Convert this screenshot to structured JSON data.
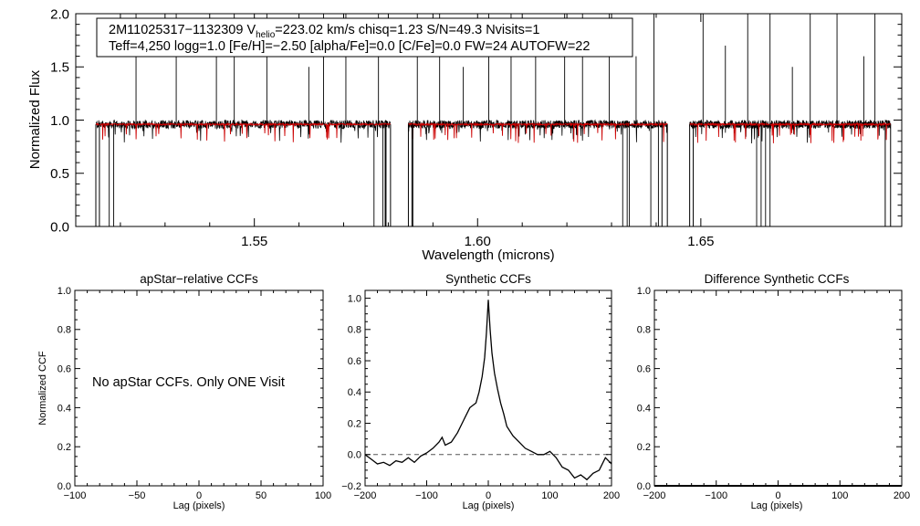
{
  "chart_data": [
    {
      "type": "line",
      "id": "spectrum",
      "title": "",
      "xlabel": "Wavelength (microns)",
      "ylabel": "Normalized Flux",
      "xlim": [
        1.51,
        1.695
      ],
      "ylim": [
        0.0,
        2.0
      ],
      "xticks": [
        1.55,
        1.6,
        1.65
      ],
      "xtick_labels": [
        "1.55",
        "1.60",
        "1.65"
      ],
      "yticks": [
        0.0,
        0.5,
        1.0,
        1.5,
        2.0
      ],
      "ytick_labels": [
        "0.0",
        "0.5",
        "1.0",
        "1.5",
        "2.0"
      ],
      "annotation_line1": "2M11025317−1132309  Vhelio=223.02 km/s  chisq=1.23  S/N=49.3  Nvisits=1",
      "annotation_line2": "Teff=4,250 logg=1.0 [Fe/H]=−2.50 [alpha/Fe]=0.0 [C/Fe]=0.0 FW=24 AUTOFW=22",
      "segments": [
        [
          1.5145,
          1.5805
        ],
        [
          1.5845,
          1.6425
        ],
        [
          1.6475,
          1.6925
        ]
      ],
      "continuum_level": 0.96,
      "series_colors": {
        "observed": "#000000",
        "model": "#cc0000"
      }
    },
    {
      "type": "line",
      "id": "apstar-ccf",
      "title": "apStar−relative CCFs",
      "xlabel": "Lag (pixels)",
      "ylabel": "Normalized CCF",
      "xlim": [
        -100,
        100
      ],
      "ylim": [
        0.0,
        1.0
      ],
      "xticks": [
        -100,
        -50,
        0,
        50,
        100
      ],
      "xtick_labels": [
        "−100",
        "−50",
        "0",
        "50",
        "100"
      ],
      "yticks": [
        0.0,
        0.2,
        0.4,
        0.6,
        0.8,
        1.0
      ],
      "ytick_labels": [
        "0.0",
        "0.2",
        "0.4",
        "0.6",
        "0.8",
        "1.0"
      ],
      "message": "No apStar CCFs.  Only ONE Visit"
    },
    {
      "type": "line",
      "id": "synthetic-ccf",
      "title": "Synthetic CCFs",
      "xlabel": "Lag (pixels)",
      "ylabel": "",
      "xlim": [
        -200,
        200
      ],
      "ylim": [
        -0.2,
        1.05
      ],
      "xticks": [
        -200,
        -100,
        0,
        100,
        200
      ],
      "xtick_labels": [
        "−200",
        "−100",
        "0",
        "100",
        "200"
      ],
      "yticks": [
        -0.2,
        0.0,
        0.2,
        0.4,
        0.6,
        0.8,
        1.0
      ],
      "ytick_labels": [
        "−0.2",
        "0.0",
        "0.2",
        "0.4",
        "0.6",
        "0.8",
        "1.0"
      ],
      "zero_line": 0.0,
      "x": [
        -200,
        -190,
        -180,
        -170,
        -160,
        -150,
        -140,
        -130,
        -120,
        -110,
        -100,
        -90,
        -80,
        -75,
        -70,
        -60,
        -50,
        -40,
        -30,
        -20,
        -15,
        -10,
        -6,
        -3,
        0,
        3,
        6,
        10,
        15,
        20,
        25,
        30,
        40,
        50,
        60,
        70,
        80,
        90,
        100,
        110,
        120,
        130,
        140,
        150,
        160,
        170,
        180,
        190,
        200
      ],
      "values": [
        0.0,
        -0.03,
        -0.06,
        -0.05,
        -0.07,
        -0.04,
        -0.05,
        -0.02,
        -0.05,
        -0.01,
        0.01,
        0.04,
        0.08,
        0.11,
        0.06,
        0.08,
        0.14,
        0.22,
        0.3,
        0.33,
        0.4,
        0.5,
        0.62,
        0.78,
        0.99,
        0.8,
        0.65,
        0.52,
        0.42,
        0.33,
        0.26,
        0.18,
        0.12,
        0.08,
        0.04,
        0.02,
        0.0,
        0.0,
        0.02,
        -0.02,
        -0.08,
        -0.1,
        -0.15,
        -0.13,
        -0.16,
        -0.12,
        -0.1,
        -0.02,
        -0.06
      ]
    },
    {
      "type": "line",
      "id": "difference-ccf",
      "title": "Difference Synthetic CCFs",
      "xlabel": "Lag (pixels)",
      "ylabel": "",
      "xlim": [
        -200,
        200
      ],
      "ylim": [
        0.0,
        1.0
      ],
      "xticks": [
        -200,
        -100,
        0,
        100,
        200
      ],
      "xtick_labels": [
        "−200",
        "−100",
        "0",
        "100",
        "200"
      ],
      "yticks": [
        0.0,
        0.2,
        0.4,
        0.6,
        0.8,
        1.0
      ],
      "ytick_labels": [
        "0.0",
        "0.2",
        "0.4",
        "0.6",
        "0.8",
        "1.0"
      ],
      "x": [
        -200,
        200
      ],
      "values": [
        0.0,
        0.0
      ]
    }
  ]
}
